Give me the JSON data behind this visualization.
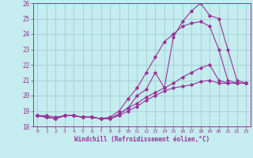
{
  "title": "",
  "xlabel": "Windchill (Refroidissement éolien,°C)",
  "ylabel": "",
  "background_color": "#c5ecee",
  "grid_color": "#a0d0d4",
  "line_color": "#993399",
  "xlim": [
    -0.5,
    23.5
  ],
  "ylim": [
    18,
    26
  ],
  "xticks": [
    0,
    1,
    2,
    3,
    4,
    5,
    6,
    7,
    8,
    9,
    10,
    11,
    12,
    13,
    14,
    15,
    16,
    17,
    18,
    19,
    20,
    21,
    22,
    23
  ],
  "yticks": [
    18,
    19,
    20,
    21,
    22,
    23,
    24,
    25,
    26
  ],
  "series": [
    {
      "x": [
        0,
        1,
        2,
        3,
        4,
        5,
        6,
        7,
        8,
        9,
        10,
        11,
        12,
        13,
        14,
        15,
        16,
        17,
        18,
        19,
        20,
        21,
        22,
        23
      ],
      "y": [
        18.7,
        18.6,
        18.5,
        18.7,
        18.7,
        18.6,
        18.6,
        18.5,
        18.5,
        18.7,
        19.0,
        19.3,
        19.7,
        20.0,
        20.3,
        20.5,
        20.6,
        20.7,
        20.9,
        21.0,
        20.8,
        20.8,
        20.8,
        20.8
      ]
    },
    {
      "x": [
        0,
        1,
        2,
        3,
        4,
        5,
        6,
        7,
        8,
        9,
        10,
        11,
        12,
        13,
        14,
        15,
        16,
        17,
        18,
        19,
        20,
        21,
        22,
        23
      ],
      "y": [
        18.7,
        18.6,
        18.5,
        18.7,
        18.7,
        18.6,
        18.6,
        18.5,
        18.5,
        18.8,
        19.2,
        20.0,
        20.4,
        21.5,
        20.5,
        23.8,
        24.8,
        25.5,
        26.0,
        25.2,
        25.0,
        23.0,
        21.0,
        20.8
      ]
    },
    {
      "x": [
        0,
        1,
        2,
        3,
        4,
        5,
        6,
        7,
        8,
        9,
        10,
        11,
        12,
        13,
        14,
        15,
        16,
        17,
        18,
        19,
        20,
        21,
        22,
        23
      ],
      "y": [
        18.7,
        18.7,
        18.6,
        18.7,
        18.7,
        18.6,
        18.6,
        18.5,
        18.6,
        19.0,
        19.8,
        20.5,
        21.5,
        22.5,
        23.5,
        24.0,
        24.5,
        24.7,
        24.8,
        24.5,
        23.0,
        21.0,
        20.8,
        20.8
      ]
    },
    {
      "x": [
        0,
        1,
        2,
        3,
        4,
        5,
        6,
        7,
        8,
        9,
        10,
        11,
        12,
        13,
        14,
        15,
        16,
        17,
        18,
        19,
        20,
        21,
        22,
        23
      ],
      "y": [
        18.7,
        18.6,
        18.5,
        18.7,
        18.7,
        18.6,
        18.6,
        18.5,
        18.5,
        18.8,
        19.2,
        19.5,
        19.9,
        20.2,
        20.5,
        20.8,
        21.2,
        21.5,
        21.8,
        22.0,
        21.0,
        20.8,
        20.8,
        20.8
      ]
    }
  ]
}
